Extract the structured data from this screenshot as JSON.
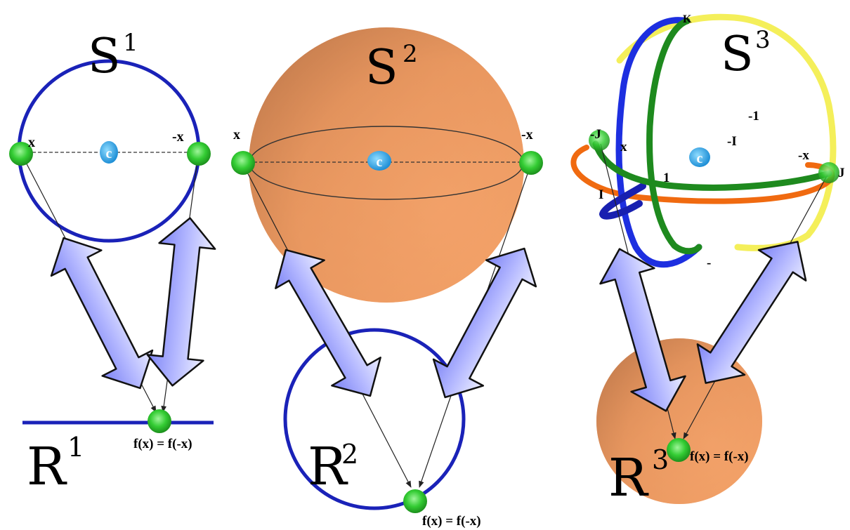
{
  "panels": {
    "one": {
      "sphere": {
        "base": "S",
        "exp": "1"
      },
      "real": {
        "base": "R",
        "exp": "1"
      },
      "point_x": "x",
      "point_neg_x": "-x",
      "center": "c",
      "equation": "f(x) = f(-x)"
    },
    "two": {
      "sphere": {
        "base": "S",
        "exp": "2"
      },
      "real": {
        "base": "R",
        "exp": "2"
      },
      "point_x": "x",
      "point_neg_x": "-x",
      "center": "c",
      "equation": "f(x) = f(-x)"
    },
    "three": {
      "sphere": {
        "base": "S",
        "exp": "3"
      },
      "real": {
        "base": "R",
        "exp": "3"
      },
      "point_x": "x",
      "point_neg_x": "-x",
      "center": "c",
      "equation": "f(x) = f(-x)",
      "quaternion_labels": {
        "k": "K",
        "neg_j": "-J",
        "j": "J",
        "i": "I",
        "neg_i": "-I",
        "one": "1",
        "neg_one": "-1",
        "minus": "-"
      }
    }
  },
  "colors": {
    "circle_blue": "#1a22b8",
    "sphere_orange": "#f0a06a",
    "point_green": "#39d13a",
    "center_cyan": "#29a8e8",
    "arrow_fill": "#aab0ff",
    "great_circle_blue": "#1d2fe0",
    "great_circle_green": "#1e8a1e",
    "great_circle_yellow": "#f5f060",
    "great_circle_orange": "#f06a10"
  }
}
